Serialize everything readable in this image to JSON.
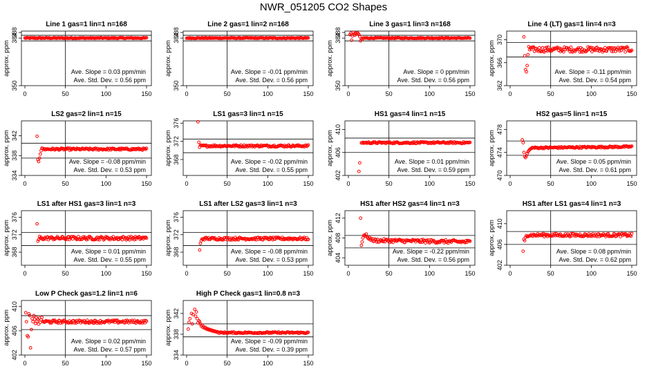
{
  "title": "NWR_051205  CO2 Shapes",
  "colors": {
    "points": "#ff0000",
    "axes": "#000000",
    "background": "#ffffff"
  },
  "chart_data": [
    {
      "type": "scatter",
      "title": "Line 1 gas=1 lin=1 n=168",
      "ylabel": "approx. ppm",
      "xlim": [
        0,
        150
      ],
      "ylim": [
        350,
        389
      ],
      "yticks": [
        350,
        384,
        388
      ],
      "xticks": [
        0,
        50,
        100,
        150
      ],
      "hlines": [
        386,
        382
      ],
      "vline": 50,
      "slope_label": "Ave. Slope =",
      "slope_value": "0.03",
      "slope_unit": "ppm/min",
      "std_label": "Ave. Std. Dev. =",
      "std_value": "0.56",
      "std_unit": "ppm",
      "spec": {
        "x_start": 0,
        "x_end": 150,
        "level": 384,
        "noise": 0.35,
        "tail_level": 384
      },
      "spikes": []
    },
    {
      "type": "scatter",
      "title": "Line 2 gas=1 lin=2 n=168",
      "ylabel": "approx. ppm",
      "xlim": [
        0,
        150
      ],
      "ylim": [
        350,
        389
      ],
      "yticks": [
        350,
        384,
        388
      ],
      "xticks": [
        0,
        50,
        100,
        150
      ],
      "hlines": [
        386,
        382
      ],
      "vline": 50,
      "slope_label": "Ave. Slope =",
      "slope_value": "-0.01",
      "slope_unit": "ppm/min",
      "std_label": "Ave. Std. Dev. =",
      "std_value": "0.56",
      "std_unit": "ppm",
      "spec": {
        "x_start": 0,
        "x_end": 150,
        "level": 384,
        "noise": 0.35,
        "tail_level": 384
      },
      "spikes": []
    },
    {
      "type": "scatter",
      "title": "Line 3 gas=1 lin=3 n=168",
      "ylabel": "approx. ppm",
      "xlim": [
        0,
        150
      ],
      "ylim": [
        350,
        389
      ],
      "yticks": [
        350,
        384,
        388
      ],
      "xticks": [
        0,
        50,
        100,
        150
      ],
      "hlines": [
        386,
        382
      ],
      "vline": 50,
      "slope_label": "Ave. Slope =",
      "slope_value": "0",
      "slope_unit": "ppm/min",
      "std_label": "Ave. Std. Dev. =",
      "std_value": "0.56",
      "std_unit": "ppm",
      "spec": {
        "x_start": 18,
        "x_end": 150,
        "level": 384,
        "noise": 0.35,
        "tail_level": 384
      },
      "spikes": [
        [
          2,
          386.5
        ],
        [
          3,
          387.5
        ],
        [
          4,
          382.5
        ],
        [
          5,
          385.5
        ],
        [
          6,
          388
        ],
        [
          7,
          387
        ],
        [
          8,
          386
        ],
        [
          9,
          387.5
        ],
        [
          10,
          386.8
        ],
        [
          11,
          387.8
        ],
        [
          12,
          387.2
        ],
        [
          13,
          386.5
        ],
        [
          14,
          385
        ],
        [
          15,
          382
        ],
        [
          16,
          383.5
        ],
        [
          17,
          383
        ]
      ]
    },
    {
      "type": "scatter",
      "title": "Line 4 (LT) gas=1 lin=4 n=3",
      "ylabel": "approx. ppm",
      "xlim": [
        0,
        150
      ],
      "ylim": [
        362,
        371.5
      ],
      "yticks": [
        362,
        366,
        370
      ],
      "xticks": [
        0,
        50,
        100,
        150
      ],
      "hlines": [
        369.5,
        367
      ],
      "vline": 50,
      "slope_label": "Ave. Slope =",
      "slope_value": "-0.11",
      "slope_unit": "ppm/min",
      "std_label": "Ave. Std. Dev. =",
      "std_value": "0.54",
      "std_unit": "ppm",
      "spec": {
        "x_start": 24,
        "x_end": 150,
        "level": 368.3,
        "noise": 0.45,
        "tail_level": 368.3
      },
      "spikes": [
        [
          17,
          370.5
        ],
        [
          18,
          367.2
        ],
        [
          19,
          364.8
        ],
        [
          20,
          364.4
        ],
        [
          21,
          365.5
        ],
        [
          22,
          367.4
        ],
        [
          23,
          368.8
        ]
      ]
    },
    {
      "type": "scatter",
      "title": "LS2 gas=2 lin=1 n=15",
      "ylabel": "approx. ppm",
      "xlim": [
        0,
        150
      ],
      "ylim": [
        334,
        345
      ],
      "yticks": [
        334,
        338,
        342
      ],
      "xticks": [
        0,
        50,
        100,
        150
      ],
      "hlines": [
        340.5,
        337.5
      ],
      "vline": 50,
      "slope_label": "Ave. Slope =",
      "slope_value": "-0.08",
      "slope_unit": "ppm/min",
      "std_label": "Ave. Std. Dev. =",
      "std_value": "0.53",
      "std_unit": "ppm",
      "spec": {
        "x_start": 22,
        "x_end": 150,
        "level": 339.3,
        "noise": 0.2,
        "tail_level": 339.3
      },
      "spikes": [
        [
          15,
          341.9
        ],
        [
          16,
          337.2
        ],
        [
          17,
          336.8
        ],
        [
          18,
          337.5
        ],
        [
          19,
          338.3
        ],
        [
          20,
          339
        ],
        [
          21,
          339.5
        ]
      ]
    },
    {
      "type": "scatter",
      "title": "LS1 gas=3 lin=1 n=15",
      "ylabel": "approx. ppm",
      "xlim": [
        0,
        150
      ],
      "ylim": [
        364.5,
        376.5
      ],
      "yticks": [
        368,
        372,
        376
      ],
      "xticks": [
        0,
        50,
        100,
        150
      ],
      "hlines": [
        372.5,
        369.5
      ],
      "vline": 50,
      "slope_label": "Ave. Slope =",
      "slope_value": "-0.02",
      "slope_unit": "ppm/min",
      "std_label": "Ave. Std. Dev. =",
      "std_value": "0.55",
      "std_unit": "ppm",
      "spec": {
        "x_start": 17,
        "x_end": 150,
        "level": 371,
        "noise": 0.22,
        "tail_level": 371
      },
      "spikes": [
        [
          14,
          376.3
        ],
        [
          15,
          371.8
        ],
        [
          16,
          370.7
        ]
      ]
    },
    {
      "type": "scatter",
      "title": "HS1 gas=4 lin=1 n=15",
      "ylabel": "approx. ppm",
      "xlim": [
        0,
        150
      ],
      "ylim": [
        402,
        411.5
      ],
      "yticks": [
        402,
        406,
        410
      ],
      "xticks": [
        0,
        50,
        100,
        150
      ],
      "hlines": [
        408.5,
        406
      ],
      "vline": 50,
      "slope_label": "Ave. Slope =",
      "slope_value": "0.01",
      "slope_unit": "ppm/min",
      "std_label": "Ave. Std. Dev. =",
      "std_value": "0.59",
      "std_unit": "ppm",
      "spec": {
        "x_start": 16,
        "x_end": 150,
        "level": 407.7,
        "noise": 0.15,
        "tail_level": 407.7
      },
      "spikes": [
        [
          13,
          402.7
        ],
        [
          14,
          404.2
        ]
      ]
    },
    {
      "type": "scatter",
      "title": "HS2 gas=5 lin=1 n=15",
      "ylabel": "approx. ppm",
      "xlim": [
        0,
        150
      ],
      "ylim": [
        470,
        479.5
      ],
      "yticks": [
        470,
        474,
        478
      ],
      "xticks": [
        0,
        50,
        100,
        150
      ],
      "hlines": [
        476,
        473.5
      ],
      "vline": 50,
      "slope_label": "Ave. Slope =",
      "slope_value": "0.05",
      "slope_unit": "ppm/min",
      "std_label": "Ave. Std. Dev. =",
      "std_value": "0.61",
      "std_unit": "ppm",
      "spec": {
        "x_start": 26,
        "x_end": 150,
        "level": 474.8,
        "noise": 0.15,
        "tail_level": 475
      },
      "spikes": [
        [
          15,
          476.2
        ],
        [
          16,
          475.7
        ],
        [
          17,
          474
        ],
        [
          18,
          473.3
        ],
        [
          19,
          473.1
        ],
        [
          20,
          473.4
        ],
        [
          21,
          473.8
        ],
        [
          22,
          474.1
        ],
        [
          23,
          474.3
        ],
        [
          24,
          474.5
        ],
        [
          25,
          474.6
        ]
      ]
    },
    {
      "type": "scatter",
      "title": "LS1 after HS1 gas=3 lin=1 n=3",
      "ylabel": "approx. ppm",
      "xlim": [
        0,
        150
      ],
      "ylim": [
        365,
        377.5
      ],
      "yticks": [
        368,
        372,
        376
      ],
      "xticks": [
        0,
        50,
        100,
        150
      ],
      "hlines": [
        372.5,
        369.5
      ],
      "vline": 50,
      "slope_label": "Ave. Slope =",
      "slope_value": "0.01",
      "slope_unit": "ppm/min",
      "std_label": "Ave. Std. Dev. =",
      "std_value": "0.55",
      "std_unit": "ppm",
      "spec": {
        "x_start": 19,
        "x_end": 150,
        "level": 371.2,
        "noise": 0.4,
        "tail_level": 371.2
      },
      "spikes": [
        [
          15,
          374.5
        ],
        [
          16,
          370.5
        ],
        [
          17,
          370.9
        ],
        [
          18,
          371.6
        ]
      ]
    },
    {
      "type": "scatter",
      "title": "LS1 after LS2 gas=3 lin=1 n=3",
      "ylabel": "approx. ppm",
      "xlim": [
        0,
        150
      ],
      "ylim": [
        365,
        377.5
      ],
      "yticks": [
        368,
        372,
        376
      ],
      "xticks": [
        0,
        50,
        100,
        150
      ],
      "hlines": [
        372.5,
        369.5
      ],
      "vline": 50,
      "slope_label": "Ave. Slope =",
      "slope_value": "-0.08",
      "slope_unit": "ppm/min",
      "std_label": "Ave. Std. Dev. =",
      "std_value": "0.53",
      "std_unit": "ppm",
      "spec": {
        "x_start": 20,
        "x_end": 150,
        "level": 371.1,
        "noise": 0.3,
        "tail_level": 371.1
      },
      "spikes": [
        [
          16,
          368.5
        ],
        [
          17,
          370
        ],
        [
          18,
          370.6
        ],
        [
          19,
          371
        ]
      ]
    },
    {
      "type": "scatter",
      "title": "HS1 after HS2 gas=4 lin=1 n=3",
      "ylabel": "approx. ppm",
      "xlim": [
        0,
        150
      ],
      "ylim": [
        402.5,
        413.5
      ],
      "yticks": [
        404,
        408,
        412
      ],
      "xticks": [
        0,
        50,
        100,
        150
      ],
      "hlines": [
        408.5,
        406
      ],
      "vline": 50,
      "slope_label": "Ave. Slope =",
      "slope_value": "-0.22",
      "slope_unit": "ppm/min",
      "std_label": "Ave. Std. Dev. =",
      "std_value": "0.56",
      "std_unit": "ppm",
      "spec": {
        "x_start": 30,
        "x_end": 150,
        "level": 407.5,
        "noise": 0.35,
        "tail_level": 407.2
      },
      "spikes": [
        [
          15,
          412
        ],
        [
          16,
          406.5
        ],
        [
          17,
          407.2
        ],
        [
          18,
          408
        ],
        [
          19,
          408.5
        ],
        [
          20,
          408.6
        ],
        [
          21,
          408.4
        ],
        [
          22,
          408.8
        ],
        [
          23,
          408.2
        ],
        [
          24,
          408
        ],
        [
          25,
          407.8
        ],
        [
          26,
          408.1
        ],
        [
          27,
          407.6
        ],
        [
          28,
          407.9
        ],
        [
          29,
          407.5
        ]
      ]
    },
    {
      "type": "scatter",
      "title": "HS1 after LS1 gas=4 lin=1 n=3",
      "ylabel": "approx. ppm",
      "xlim": [
        0,
        150
      ],
      "ylim": [
        402,
        412.5
      ],
      "yticks": [
        402,
        406,
        410
      ],
      "xticks": [
        0,
        50,
        100,
        150
      ],
      "hlines": [
        408.5,
        406
      ],
      "vline": 50,
      "slope_label": "Ave. Slope =",
      "slope_value": "0.08",
      "slope_unit": "ppm/min",
      "std_label": "Ave. Std. Dev. =",
      "std_value": "0.62",
      "std_unit": "ppm",
      "spec": {
        "x_start": 20,
        "x_end": 150,
        "level": 407.8,
        "noise": 0.3,
        "tail_level": 407.8
      },
      "spikes": [
        [
          16,
          404.7
        ],
        [
          17,
          407
        ],
        [
          18,
          406.7
        ],
        [
          19,
          407.4
        ]
      ]
    },
    {
      "type": "scatter",
      "title": "Low P Check gas=1.2 lin=1 n=6",
      "ylabel": "approx. ppm",
      "xlim": [
        0,
        150
      ],
      "ylim": [
        402,
        411
      ],
      "yticks": [
        402,
        406,
        410
      ],
      "xticks": [
        0,
        50,
        100,
        150
      ],
      "hlines": [
        408.5,
        406.2
      ],
      "vline": 50,
      "slope_label": "Ave. Slope =",
      "slope_value": "0.02",
      "slope_unit": "ppm/min",
      "std_label": "Ave. Std. Dev. =",
      "std_value": "0.57",
      "std_unit": "ppm",
      "spec": {
        "x_start": 22,
        "x_end": 150,
        "level": 407.5,
        "noise": 0.25,
        "tail_level": 407.5
      },
      "spikes": [
        [
          1,
          409
        ],
        [
          2,
          407.5
        ],
        [
          3,
          405.2
        ],
        [
          4,
          405
        ],
        [
          5,
          408.8
        ],
        [
          6,
          408.5
        ],
        [
          7,
          403.2
        ],
        [
          8,
          406.2
        ],
        [
          9,
          408
        ],
        [
          10,
          407.5
        ],
        [
          11,
          408.5
        ],
        [
          12,
          407.9
        ],
        [
          13,
          407.2
        ],
        [
          14,
          408.2
        ],
        [
          15,
          407.6
        ],
        [
          16,
          407.9
        ],
        [
          17,
          407.1
        ],
        [
          18,
          408.1
        ],
        [
          19,
          407.4
        ],
        [
          20,
          407.8
        ],
        [
          21,
          408.2
        ]
      ]
    },
    {
      "type": "scatter",
      "title": "High P Check gas=1 lin=0.8 n=3",
      "ylabel": "approx. ppm",
      "xlim": [
        0,
        150
      ],
      "ylim": [
        334,
        344.5
      ],
      "yticks": [
        334,
        338,
        342
      ],
      "xticks": [
        0,
        50,
        100,
        150
      ],
      "hlines": [
        340,
        337.5
      ],
      "vline": 50,
      "slope_label": "Ave. Slope =",
      "slope_value": "-0.09",
      "slope_unit": "ppm/min",
      "std_label": "Ave. Std. Dev. =",
      "std_value": "0.39",
      "std_unit": "ppm",
      "spec": {
        "x_start": 40,
        "x_end": 150,
        "level": 338.3,
        "noise": 0.15,
        "tail_level": 338.3
      },
      "spikes": [
        [
          2,
          339
        ],
        [
          3,
          340.3
        ],
        [
          4,
          341
        ],
        [
          6,
          342
        ],
        [
          7,
          340
        ],
        [
          8,
          341.8
        ],
        [
          10,
          342.8
        ],
        [
          11,
          341.5
        ],
        [
          12,
          342.3
        ],
        [
          13,
          341
        ],
        [
          14,
          340.2
        ],
        [
          15,
          340.6
        ],
        [
          16,
          340.4
        ],
        [
          17,
          340
        ],
        [
          18,
          339.6
        ],
        [
          19,
          339.8
        ],
        [
          20,
          339.3
        ],
        [
          21,
          339.5
        ],
        [
          22,
          339.2
        ],
        [
          23,
          339.3
        ],
        [
          24,
          339
        ],
        [
          25,
          339.1
        ],
        [
          26,
          338.9
        ],
        [
          27,
          339
        ],
        [
          28,
          338.8
        ],
        [
          29,
          338.9
        ],
        [
          30,
          338.7
        ],
        [
          31,
          338.8
        ],
        [
          32,
          338.6
        ],
        [
          33,
          338.7
        ],
        [
          34,
          338.5
        ],
        [
          35,
          338.6
        ],
        [
          36,
          338.5
        ],
        [
          37,
          338.4
        ],
        [
          38,
          338.5
        ],
        [
          39,
          338.4
        ]
      ]
    }
  ]
}
